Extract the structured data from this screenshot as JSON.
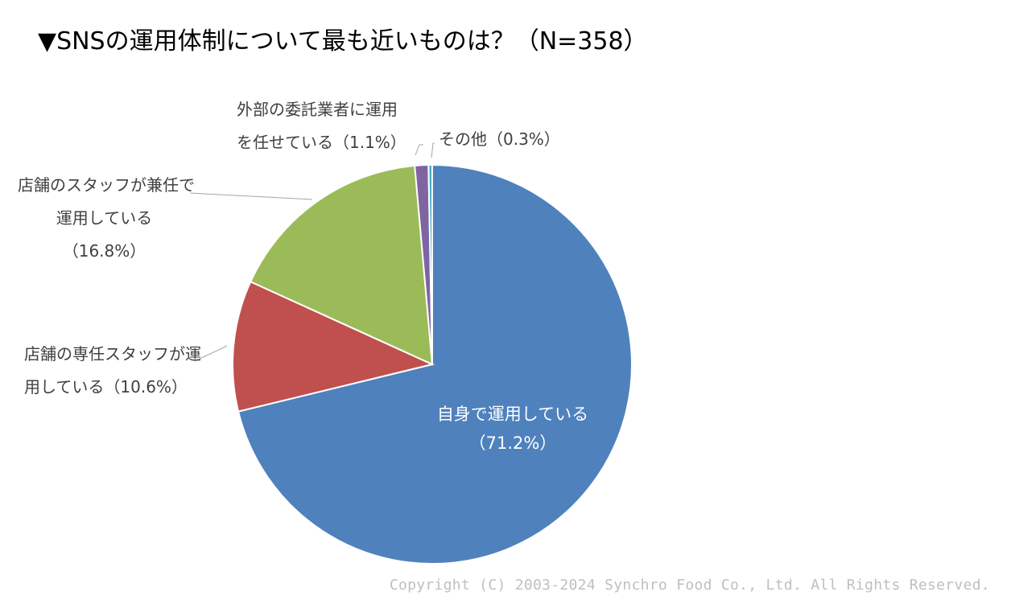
{
  "title": "▼SNSの運用体制について最も近いものは？（N=358）",
  "copyright": "Copyright (C) 2003-2024  Synchro Food Co., Ltd. All Rights Reserved.",
  "chart_data": {
    "type": "pie",
    "start_angle_deg": 0,
    "direction": "clockwise",
    "slices": [
      {
        "name": "自身で運用している",
        "value": 71.2,
        "color": "#4F81BD",
        "label_lines": [
          "自身で運用している",
          "（71.2%）"
        ]
      },
      {
        "name": "店舗の専任スタッフが運用している",
        "value": 10.6,
        "color": "#C0504D",
        "label_lines": [
          "店舗の専任スタッフが運",
          "用している（10.6%）"
        ]
      },
      {
        "name": "店舗のスタッフが兼任で運用している",
        "value": 16.8,
        "color": "#9BBB59",
        "label_lines": [
          "店舗のスタッフが兼任で",
          "運用している",
          "（16.8%）"
        ]
      },
      {
        "name": "外部の委託業者に運用を任せている",
        "value": 1.1,
        "color": "#8064A2",
        "label_lines": [
          "外部の委託業者に運用",
          "を任せている（1.1%）"
        ]
      },
      {
        "name": "その他",
        "value": 0.3,
        "color": "#4BACC6",
        "label_lines": [
          "その他（0.3%）"
        ]
      }
    ]
  }
}
